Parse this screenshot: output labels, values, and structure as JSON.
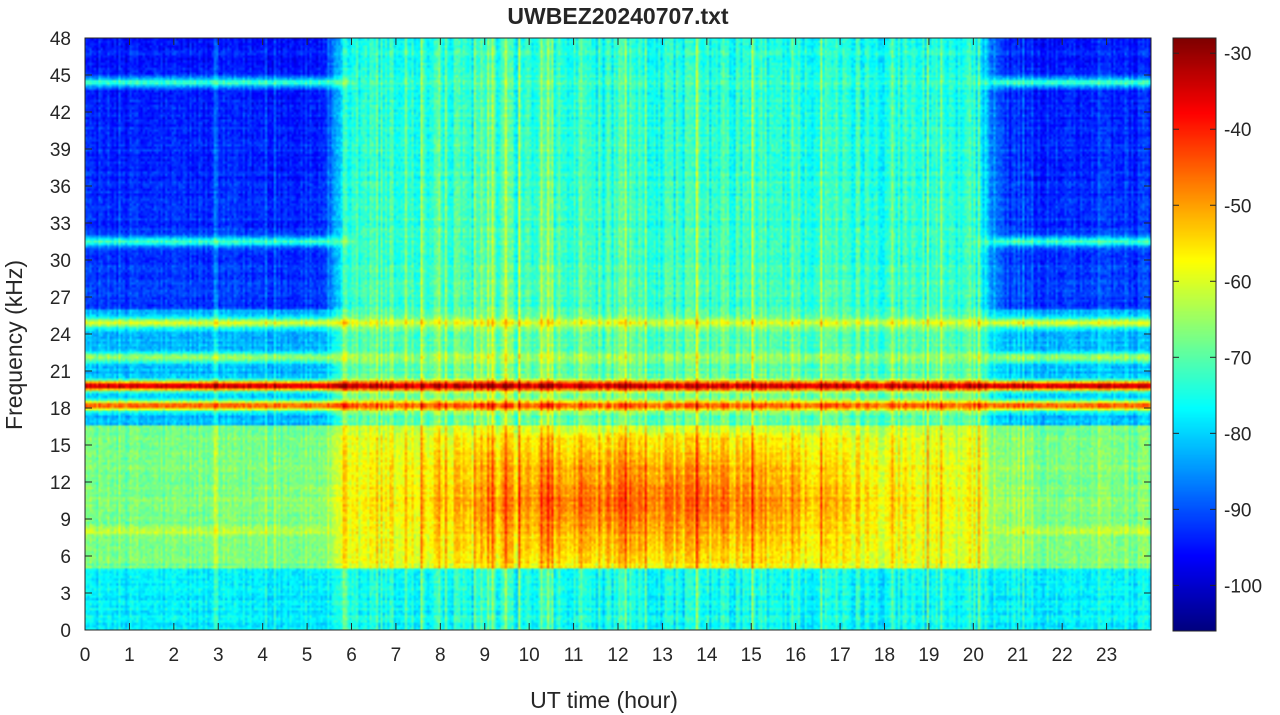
{
  "chart_data": {
    "type": "heatmap",
    "title": "UWBEZ20240707.txt",
    "xlabel": "UT time (hour)",
    "ylabel": "Frequency (kHz)",
    "xlim": [
      0,
      24
    ],
    "ylim": [
      0,
      48
    ],
    "x_ticks": [
      "0",
      "1",
      "2",
      "3",
      "4",
      "5",
      "6",
      "7",
      "8",
      "9",
      "10",
      "11",
      "12",
      "13",
      "14",
      "15",
      "16",
      "17",
      "18",
      "19",
      "20",
      "21",
      "22",
      "23"
    ],
    "y_ticks": [
      "0",
      "3",
      "6",
      "9",
      "12",
      "15",
      "18",
      "21",
      "24",
      "27",
      "30",
      "33",
      "36",
      "39",
      "42",
      "45",
      "48"
    ],
    "colorbar": {
      "range": [
        -106,
        -28
      ],
      "ticks": [
        "-30",
        "-40",
        "-50",
        "-60",
        "-70",
        "-80",
        "-90",
        "-100"
      ],
      "colormap": "jet"
    },
    "features": {
      "strong_line_khz": 19.8,
      "secondary_line_khz": 18.2,
      "emission_band_khz": [
        5,
        16
      ],
      "emission_peak_hours": [
        10,
        17
      ],
      "line_levels_db": [
        {
          "khz": 19.8,
          "level_db": -32
        },
        {
          "khz": 18.2,
          "level_db": -44
        },
        {
          "khz": 24.9,
          "level_db": -60
        },
        {
          "khz": 22.1,
          "level_db": -64
        },
        {
          "khz": 44.4,
          "level_db": -72
        },
        {
          "khz": 31.5,
          "level_db": -72
        },
        {
          "khz": 8.0,
          "level_db": -62
        }
      ]
    }
  }
}
